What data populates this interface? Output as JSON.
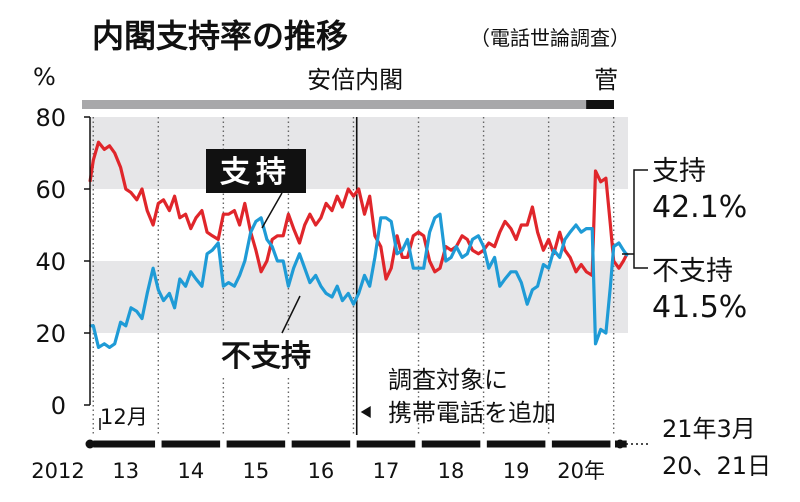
{
  "chart_data": {
    "type": "line",
    "title": "内閣支持率の推移",
    "subtitle": "（電話世論調査）",
    "y_unit": "%",
    "ylim": [
      0,
      80
    ],
    "y_ticks": [
      "0",
      "20",
      "40",
      "60",
      "80"
    ],
    "x_range": [
      2012.95,
      2021.22
    ],
    "x_ticks": [
      {
        "x": 2012.95,
        "label": "2012"
      },
      {
        "x": 2013.5,
        "label": "13"
      },
      {
        "x": 2014.5,
        "label": "14"
      },
      {
        "x": 2015.5,
        "label": "15"
      },
      {
        "x": 2016.5,
        "label": "16"
      },
      {
        "x": 2017.5,
        "label": "17"
      },
      {
        "x": 2018.5,
        "label": "18"
      },
      {
        "x": 2019.5,
        "label": "19"
      },
      {
        "x": 2020.5,
        "label": "20年"
      }
    ],
    "start_month_label": "12月",
    "end_date_label_1": "21年3月",
    "end_date_label_2": "20、21日",
    "eras": [
      {
        "name": "安倍内閣",
        "start": 2012.95,
        "end": 2020.7
      },
      {
        "name": "菅",
        "start": 2020.7,
        "end": 2021.22
      }
    ],
    "annotation": {
      "x": 2017.05,
      "line1": "調査対象に",
      "line2": "携帯電話を追加"
    },
    "grid": "alternating horizontal bands",
    "series": [
      {
        "name": "支持",
        "color": "#e0262b",
        "latest_label": "42.1%",
        "points": [
          [
            2012.95,
            62
          ],
          [
            2013.0,
            68
          ],
          [
            2013.08,
            73
          ],
          [
            2013.17,
            71
          ],
          [
            2013.25,
            72
          ],
          [
            2013.33,
            70
          ],
          [
            2013.42,
            66
          ],
          [
            2013.5,
            60
          ],
          [
            2013.58,
            59
          ],
          [
            2013.67,
            57
          ],
          [
            2013.75,
            60
          ],
          [
            2013.83,
            54
          ],
          [
            2013.92,
            50
          ],
          [
            2014.0,
            56
          ],
          [
            2014.08,
            57
          ],
          [
            2014.17,
            54
          ],
          [
            2014.25,
            58
          ],
          [
            2014.33,
            52
          ],
          [
            2014.42,
            53
          ],
          [
            2014.5,
            49
          ],
          [
            2014.58,
            52
          ],
          [
            2014.67,
            54
          ],
          [
            2014.75,
            48
          ],
          [
            2014.83,
            47
          ],
          [
            2014.92,
            46
          ],
          [
            2015.0,
            53
          ],
          [
            2015.08,
            53
          ],
          [
            2015.17,
            54
          ],
          [
            2015.25,
            50
          ],
          [
            2015.33,
            56
          ],
          [
            2015.42,
            48
          ],
          [
            2015.5,
            43
          ],
          [
            2015.58,
            37
          ],
          [
            2015.67,
            40
          ],
          [
            2015.75,
            46
          ],
          [
            2015.83,
            47
          ],
          [
            2015.92,
            47
          ],
          [
            2016.0,
            53
          ],
          [
            2016.08,
            49
          ],
          [
            2016.17,
            45
          ],
          [
            2016.25,
            50
          ],
          [
            2016.33,
            53
          ],
          [
            2016.42,
            50
          ],
          [
            2016.5,
            52
          ],
          [
            2016.58,
            56
          ],
          [
            2016.67,
            54
          ],
          [
            2016.75,
            58
          ],
          [
            2016.83,
            55
          ],
          [
            2016.92,
            60
          ],
          [
            2017.0,
            58
          ],
          [
            2017.08,
            60
          ],
          [
            2017.17,
            53
          ],
          [
            2017.25,
            58
          ],
          [
            2017.33,
            47
          ],
          [
            2017.42,
            44
          ],
          [
            2017.5,
            35
          ],
          [
            2017.58,
            38
          ],
          [
            2017.67,
            47
          ],
          [
            2017.75,
            41
          ],
          [
            2017.83,
            41
          ],
          [
            2017.92,
            47
          ],
          [
            2018.0,
            48
          ],
          [
            2018.08,
            47
          ],
          [
            2018.17,
            40
          ],
          [
            2018.25,
            37
          ],
          [
            2018.33,
            38
          ],
          [
            2018.42,
            44
          ],
          [
            2018.5,
            43
          ],
          [
            2018.58,
            44
          ],
          [
            2018.67,
            47
          ],
          [
            2018.75,
            46
          ],
          [
            2018.83,
            43
          ],
          [
            2018.92,
            42
          ],
          [
            2019.0,
            43
          ],
          [
            2019.08,
            45
          ],
          [
            2019.17,
            44
          ],
          [
            2019.25,
            48
          ],
          [
            2019.33,
            51
          ],
          [
            2019.42,
            49
          ],
          [
            2019.5,
            46
          ],
          [
            2019.58,
            50
          ],
          [
            2019.67,
            50
          ],
          [
            2019.75,
            55
          ],
          [
            2019.83,
            48
          ],
          [
            2019.92,
            43
          ],
          [
            2020.0,
            46
          ],
          [
            2020.08,
            42
          ],
          [
            2020.17,
            48
          ],
          [
            2020.25,
            43
          ],
          [
            2020.33,
            41
          ],
          [
            2020.42,
            37
          ],
          [
            2020.5,
            39
          ],
          [
            2020.58,
            37
          ],
          [
            2020.67,
            36
          ],
          [
            2020.72,
            65
          ],
          [
            2020.8,
            62
          ],
          [
            2020.88,
            63
          ],
          [
            2020.95,
            50
          ],
          [
            2021.0,
            40
          ],
          [
            2021.08,
            38
          ],
          [
            2021.15,
            40
          ],
          [
            2021.21,
            42.1
          ]
        ]
      },
      {
        "name": "不支持",
        "color": "#1f9bd6",
        "latest_label": "41.5%",
        "points": [
          [
            2012.95,
            22
          ],
          [
            2013.0,
            22
          ],
          [
            2013.08,
            16
          ],
          [
            2013.17,
            17
          ],
          [
            2013.25,
            16
          ],
          [
            2013.33,
            17
          ],
          [
            2013.42,
            23
          ],
          [
            2013.5,
            22
          ],
          [
            2013.58,
            27
          ],
          [
            2013.67,
            26
          ],
          [
            2013.75,
            24
          ],
          [
            2013.83,
            31
          ],
          [
            2013.92,
            38
          ],
          [
            2014.0,
            32
          ],
          [
            2014.08,
            29
          ],
          [
            2014.17,
            31
          ],
          [
            2014.25,
            27
          ],
          [
            2014.33,
            35
          ],
          [
            2014.42,
            33
          ],
          [
            2014.5,
            37
          ],
          [
            2014.58,
            35
          ],
          [
            2014.67,
            33
          ],
          [
            2014.75,
            42
          ],
          [
            2014.83,
            43
          ],
          [
            2014.92,
            45
          ],
          [
            2015.0,
            33
          ],
          [
            2015.08,
            34
          ],
          [
            2015.17,
            33
          ],
          [
            2015.25,
            36
          ],
          [
            2015.33,
            40
          ],
          [
            2015.42,
            48
          ],
          [
            2015.5,
            51
          ],
          [
            2015.58,
            52
          ],
          [
            2015.67,
            46
          ],
          [
            2015.75,
            44
          ],
          [
            2015.83,
            40
          ],
          [
            2015.92,
            40
          ],
          [
            2016.0,
            33
          ],
          [
            2016.08,
            38
          ],
          [
            2016.17,
            42
          ],
          [
            2016.25,
            38
          ],
          [
            2016.33,
            34
          ],
          [
            2016.42,
            36
          ],
          [
            2016.5,
            33
          ],
          [
            2016.58,
            31
          ],
          [
            2016.67,
            30
          ],
          [
            2016.75,
            33
          ],
          [
            2016.83,
            29
          ],
          [
            2016.92,
            31
          ],
          [
            2017.0,
            28
          ],
          [
            2017.08,
            31
          ],
          [
            2017.17,
            36
          ],
          [
            2017.25,
            33
          ],
          [
            2017.33,
            41
          ],
          [
            2017.42,
            52
          ],
          [
            2017.5,
            52
          ],
          [
            2017.58,
            51
          ],
          [
            2017.67,
            42
          ],
          [
            2017.75,
            43
          ],
          [
            2017.83,
            46
          ],
          [
            2017.92,
            38
          ],
          [
            2018.0,
            38
          ],
          [
            2018.08,
            38
          ],
          [
            2018.17,
            48
          ],
          [
            2018.25,
            52
          ],
          [
            2018.33,
            53
          ],
          [
            2018.42,
            40
          ],
          [
            2018.5,
            41
          ],
          [
            2018.58,
            44
          ],
          [
            2018.67,
            41
          ],
          [
            2018.75,
            42
          ],
          [
            2018.83,
            46
          ],
          [
            2018.92,
            47
          ],
          [
            2019.0,
            44
          ],
          [
            2019.08,
            38
          ],
          [
            2019.17,
            41
          ],
          [
            2019.25,
            33
          ],
          [
            2019.33,
            35
          ],
          [
            2019.42,
            37
          ],
          [
            2019.5,
            37
          ],
          [
            2019.58,
            34
          ],
          [
            2019.67,
            28
          ],
          [
            2019.75,
            32
          ],
          [
            2019.83,
            33
          ],
          [
            2019.92,
            39
          ],
          [
            2020.0,
            38
          ],
          [
            2020.08,
            43
          ],
          [
            2020.17,
            41
          ],
          [
            2020.25,
            46
          ],
          [
            2020.33,
            48
          ],
          [
            2020.42,
            50
          ],
          [
            2020.5,
            48
          ],
          [
            2020.58,
            49
          ],
          [
            2020.67,
            49
          ],
          [
            2020.72,
            17
          ],
          [
            2020.8,
            21
          ],
          [
            2020.88,
            20
          ],
          [
            2020.95,
            33
          ],
          [
            2021.0,
            44
          ],
          [
            2021.08,
            45
          ],
          [
            2021.15,
            43
          ],
          [
            2021.21,
            41.5
          ]
        ]
      }
    ]
  }
}
